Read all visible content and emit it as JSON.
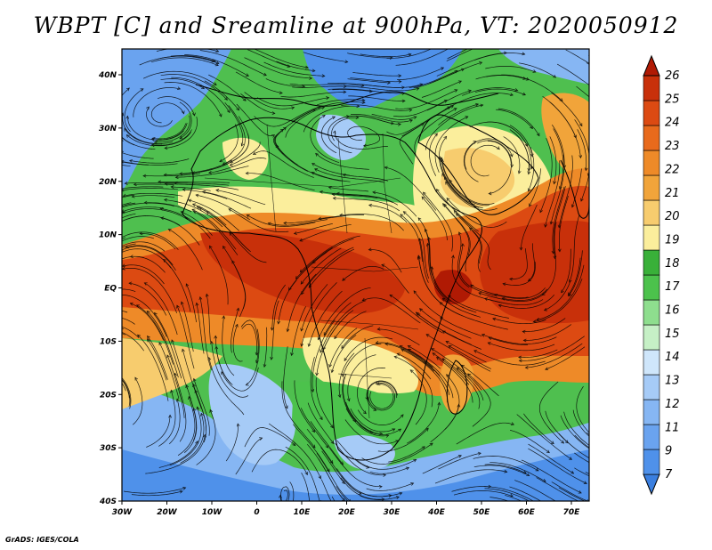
{
  "title": "WBPT [C] and Sreamline at 900hPa, VT: 2020050912",
  "credit": "GrADS: IGES/COLA",
  "map": {
    "lon_labels": [
      "30W",
      "20W",
      "10W",
      "0",
      "10E",
      "20E",
      "30E",
      "40E",
      "50E",
      "60E",
      "70E"
    ],
    "lat_labels": [
      "40N",
      "30N",
      "20N",
      "10N",
      "EQ",
      "10S",
      "20S",
      "30S",
      "40S"
    ]
  },
  "colorbar": {
    "levels": [
      "7",
      "9",
      "11",
      "12",
      "13",
      "14",
      "15",
      "16",
      "17",
      "18",
      "19",
      "20",
      "21",
      "22",
      "23",
      "24",
      "25",
      "26"
    ],
    "colors": [
      "#3a7fe0",
      "#4f91ea",
      "#6aa3ef",
      "#86b6f3",
      "#a6cbf7",
      "#cfe6fb",
      "#c6f0c6",
      "#8ede8e",
      "#4cc24c",
      "#39b039",
      "#fbee9c",
      "#f7cc6e",
      "#f1a43a",
      "#ee8a28",
      "#e86a1c",
      "#dc4a12",
      "#c8300a",
      "#b01a04"
    ]
  }
}
